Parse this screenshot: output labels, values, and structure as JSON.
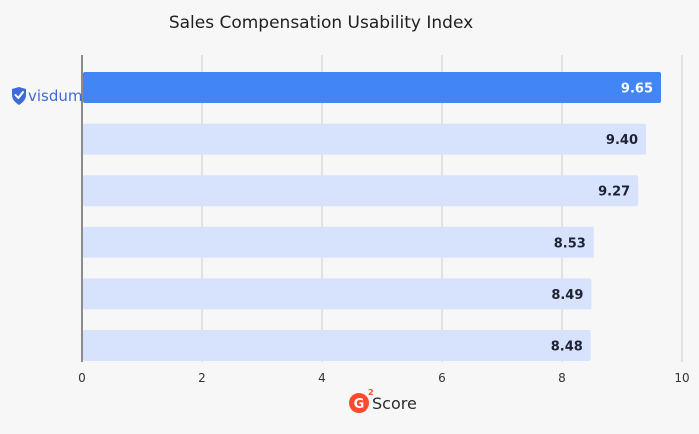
{
  "chart_data": {
    "type": "bar",
    "orientation": "horizontal",
    "title": "Sales Compensation Usability Index",
    "categories": [
      "visdum",
      "",
      "",
      "",
      "",
      ""
    ],
    "values": [
      9.65,
      9.4,
      9.27,
      8.53,
      8.49,
      8.48
    ],
    "value_labels": [
      "9.65",
      "9.40",
      "9.27",
      "8.53",
      "8.49",
      "8.48"
    ],
    "xlim": [
      0,
      10
    ],
    "xticks": [
      0,
      2,
      4,
      6,
      8,
      10
    ],
    "grid": true,
    "highlight_index": 0,
    "colors": {
      "highlight_bar": "#4285f4",
      "bar": "#d7e3fd",
      "highlight_label": "#ffffff",
      "label": "#1f2233",
      "grid": "#cccccc",
      "axis": "#444444",
      "brand": "#3f6bd8",
      "g2_logo": "#ff492c"
    }
  },
  "footer": {
    "logo_glyph": "G",
    "logo_superscript": "2",
    "label": "Score"
  },
  "brand": {
    "name": "visdum",
    "icon": "shield-check-icon"
  }
}
